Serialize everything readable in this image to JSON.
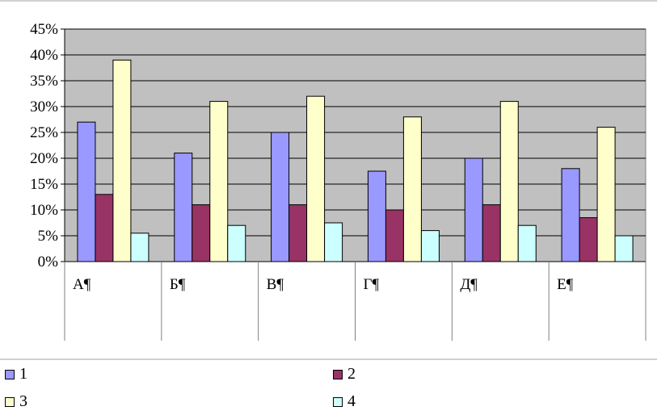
{
  "chart_data": {
    "type": "bar",
    "categories": [
      "А¶",
      "Б¶",
      "В¶",
      "Г¶",
      "Д¶",
      "Е¶"
    ],
    "series": [
      {
        "name": "1",
        "color": "#9999ff",
        "values": [
          0.27,
          0.21,
          0.25,
          0.175,
          0.2,
          0.18
        ]
      },
      {
        "name": "2",
        "color": "#993366",
        "values": [
          0.13,
          0.11,
          0.11,
          0.1,
          0.11,
          0.085
        ]
      },
      {
        "name": "3",
        "color": "#ffffcc",
        "values": [
          0.39,
          0.31,
          0.32,
          0.28,
          0.31,
          0.26
        ]
      },
      {
        "name": "4",
        "color": "#ccffff",
        "values": [
          0.055,
          0.07,
          0.075,
          0.06,
          0.07,
          0.05
        ]
      }
    ],
    "ylim": [
      0,
      0.45
    ],
    "yticks": [
      {
        "value": 0.0,
        "label": "0%"
      },
      {
        "value": 0.05,
        "label": "5%"
      },
      {
        "value": 0.1,
        "label": "10%"
      },
      {
        "value": 0.15,
        "label": "15%"
      },
      {
        "value": 0.2,
        "label": "20%"
      },
      {
        "value": 0.25,
        "label": "25%"
      },
      {
        "value": 0.3,
        "label": "30%"
      },
      {
        "value": 0.35,
        "label": "35%"
      },
      {
        "value": 0.4,
        "label": "40%"
      },
      {
        "value": 0.45,
        "label": "45%"
      }
    ],
    "plot_background": "#c0c0c0",
    "grid": true,
    "legend_position": "bottom"
  }
}
